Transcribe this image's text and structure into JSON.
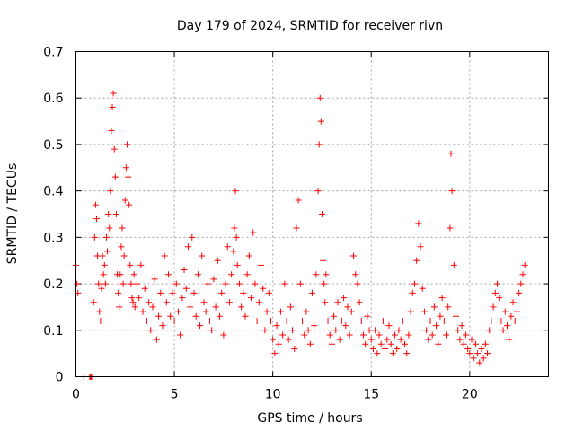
{
  "chart_data": {
    "type": "scatter",
    "title": "Day 179 of 2024, SRMTID for receiver rivn",
    "xlabel": "GPS time / hours",
    "ylabel": "SRMTID / TECUs",
    "xlim": [
      0,
      24
    ],
    "ylim": [
      0,
      0.7
    ],
    "xticks": [
      0,
      5,
      10,
      15,
      20
    ],
    "yticks": [
      0,
      0.1,
      0.2,
      0.3,
      0.4,
      0.5,
      0.6,
      0.7
    ],
    "xtick_labels": [
      "0",
      "5",
      "10",
      "15",
      "20"
    ],
    "ytick_labels": [
      "0",
      "0.1",
      "0.2",
      "0.3",
      "0.4",
      "0.5",
      "0.6",
      "0.7"
    ],
    "grid": true,
    "marker": "+",
    "color": "#ff0000",
    "series": [
      {
        "name": "SRMTID",
        "x": [
          0.0,
          0.05,
          0.1,
          0.4,
          0.7,
          0.75,
          0.8,
          0.9,
          0.95,
          1.0,
          1.05,
          1.1,
          1.15,
          1.2,
          1.25,
          1.3,
          1.35,
          1.4,
          1.45,
          1.5,
          1.55,
          1.6,
          1.65,
          1.7,
          1.75,
          1.8,
          1.85,
          1.9,
          1.95,
          2.0,
          2.05,
          2.1,
          2.15,
          2.2,
          2.25,
          2.3,
          2.35,
          2.4,
          2.45,
          2.5,
          2.55,
          2.6,
          2.65,
          2.7,
          2.75,
          2.8,
          2.85,
          2.9,
          2.95,
          3.0,
          3.1,
          3.2,
          3.3,
          3.4,
          3.5,
          3.6,
          3.7,
          3.8,
          3.9,
          4.0,
          4.1,
          4.2,
          4.3,
          4.4,
          4.5,
          4.6,
          4.7,
          4.8,
          4.9,
          5.0,
          5.1,
          5.2,
          5.3,
          5.4,
          5.5,
          5.6,
          5.7,
          5.8,
          5.9,
          6.0,
          6.1,
          6.2,
          6.3,
          6.4,
          6.5,
          6.6,
          6.7,
          6.8,
          6.9,
          7.0,
          7.1,
          7.2,
          7.3,
          7.4,
          7.5,
          7.6,
          7.7,
          7.8,
          7.9,
          8.0,
          8.05,
          8.1,
          8.15,
          8.2,
          8.3,
          8.4,
          8.5,
          8.6,
          8.7,
          8.8,
          8.9,
          9.0,
          9.1,
          9.2,
          9.3,
          9.4,
          9.5,
          9.6,
          9.7,
          9.8,
          9.9,
          10.0,
          10.1,
          10.2,
          10.3,
          10.4,
          10.5,
          10.6,
          10.7,
          10.8,
          10.9,
          11.0,
          11.1,
          11.2,
          11.3,
          11.4,
          11.5,
          11.6,
          11.7,
          11.8,
          11.9,
          12.0,
          12.1,
          12.2,
          12.3,
          12.35,
          12.4,
          12.45,
          12.5,
          12.55,
          12.6,
          12.65,
          12.7,
          12.8,
          12.9,
          13.0,
          13.1,
          13.2,
          13.3,
          13.4,
          13.5,
          13.6,
          13.7,
          13.8,
          13.9,
          14.0,
          14.1,
          14.2,
          14.3,
          14.4,
          14.5,
          14.6,
          14.7,
          14.8,
          14.9,
          15.0,
          15.1,
          15.2,
          15.3,
          15.4,
          15.5,
          15.6,
          15.7,
          15.8,
          15.9,
          16.0,
          16.1,
          16.2,
          16.3,
          16.4,
          16.5,
          16.6,
          16.7,
          16.8,
          16.9,
          17.0,
          17.1,
          17.2,
          17.3,
          17.4,
          17.5,
          17.6,
          17.7,
          17.8,
          17.9,
          18.0,
          18.1,
          18.2,
          18.3,
          18.4,
          18.5,
          18.6,
          18.7,
          18.8,
          18.9,
          19.0,
          19.05,
          19.1,
          19.2,
          19.3,
          19.4,
          19.5,
          19.6,
          19.7,
          19.8,
          19.9,
          20.0,
          20.1,
          20.2,
          20.3,
          20.4,
          20.5,
          20.6,
          20.7,
          20.8,
          20.9,
          21.0,
          21.1,
          21.2,
          21.3,
          21.4,
          21.5,
          21.6,
          21.7,
          21.8,
          21.9,
          22.0,
          22.1,
          22.2,
          22.3,
          22.4,
          22.5,
          22.6,
          22.7,
          22.8
        ],
        "y": [
          0.24,
          0.2,
          0.18,
          0.0,
          0.0,
          0.0,
          0.0,
          0.16,
          0.3,
          0.37,
          0.34,
          0.26,
          0.2,
          0.14,
          0.12,
          0.19,
          0.26,
          0.22,
          0.24,
          0.2,
          0.3,
          0.27,
          0.35,
          0.32,
          0.4,
          0.53,
          0.58,
          0.61,
          0.49,
          0.43,
          0.35,
          0.22,
          0.18,
          0.15,
          0.22,
          0.28,
          0.32,
          0.2,
          0.26,
          0.38,
          0.45,
          0.5,
          0.43,
          0.37,
          0.24,
          0.2,
          0.17,
          0.16,
          0.22,
          0.15,
          0.2,
          0.17,
          0.24,
          0.14,
          0.19,
          0.12,
          0.16,
          0.1,
          0.15,
          0.21,
          0.08,
          0.13,
          0.18,
          0.11,
          0.26,
          0.16,
          0.22,
          0.13,
          0.18,
          0.12,
          0.2,
          0.14,
          0.09,
          0.17,
          0.23,
          0.19,
          0.28,
          0.15,
          0.3,
          0.18,
          0.13,
          0.22,
          0.11,
          0.26,
          0.16,
          0.14,
          0.2,
          0.12,
          0.1,
          0.21,
          0.15,
          0.25,
          0.13,
          0.18,
          0.09,
          0.2,
          0.28,
          0.16,
          0.22,
          0.27,
          0.32,
          0.4,
          0.3,
          0.24,
          0.2,
          0.15,
          0.18,
          0.13,
          0.22,
          0.26,
          0.17,
          0.31,
          0.2,
          0.12,
          0.16,
          0.24,
          0.19,
          0.1,
          0.14,
          0.18,
          0.12,
          0.08,
          0.05,
          0.11,
          0.07,
          0.14,
          0.09,
          0.2,
          0.12,
          0.08,
          0.15,
          0.1,
          0.06,
          0.32,
          0.38,
          0.2,
          0.12,
          0.09,
          0.14,
          0.1,
          0.07,
          0.18,
          0.11,
          0.22,
          0.4,
          0.5,
          0.6,
          0.55,
          0.35,
          0.25,
          0.2,
          0.16,
          0.22,
          0.12,
          0.09,
          0.07,
          0.13,
          0.1,
          0.16,
          0.08,
          0.12,
          0.17,
          0.11,
          0.15,
          0.09,
          0.14,
          0.26,
          0.22,
          0.2,
          0.16,
          0.12,
          0.09,
          0.07,
          0.13,
          0.1,
          0.08,
          0.06,
          0.1,
          0.05,
          0.09,
          0.07,
          0.12,
          0.06,
          0.08,
          0.11,
          0.07,
          0.05,
          0.09,
          0.06,
          0.1,
          0.08,
          0.12,
          0.07,
          0.05,
          0.09,
          0.14,
          0.18,
          0.2,
          0.25,
          0.33,
          0.28,
          0.19,
          0.14,
          0.1,
          0.08,
          0.12,
          0.09,
          0.15,
          0.11,
          0.07,
          0.13,
          0.17,
          0.12,
          0.09,
          0.15,
          0.32,
          0.48,
          0.4,
          0.24,
          0.13,
          0.1,
          0.08,
          0.11,
          0.07,
          0.09,
          0.06,
          0.05,
          0.08,
          0.04,
          0.07,
          0.05,
          0.03,
          0.06,
          0.04,
          0.07,
          0.05,
          0.1,
          0.12,
          0.15,
          0.18,
          0.2,
          0.17,
          0.12,
          0.1,
          0.14,
          0.11,
          0.08,
          0.13,
          0.16,
          0.12,
          0.14,
          0.18,
          0.2,
          0.22,
          0.24
        ]
      }
    ]
  }
}
